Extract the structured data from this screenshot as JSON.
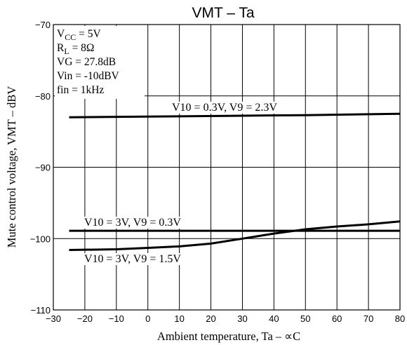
{
  "chart_data": {
    "type": "line",
    "title": "VMT – Ta",
    "xlabel": "Ambient temperature, Ta – ∝C",
    "ylabel": "Mute control voltage, VMT – dBV",
    "xlim": [
      -30,
      80
    ],
    "ylim": [
      -110,
      -70
    ],
    "x_ticks": [
      -30,
      -20,
      -10,
      0,
      10,
      20,
      30,
      40,
      50,
      60,
      70,
      80
    ],
    "y_ticks": [
      -70,
      -80,
      -90,
      -100,
      -110
    ],
    "grid": true,
    "conditions": [
      {
        "main": "V",
        "sub": "CC",
        "rest": " = 5V"
      },
      {
        "main": "R",
        "sub": "L",
        "rest": " = 8Ω"
      },
      {
        "main": "VG = 27.8dB",
        "sub": "",
        "rest": ""
      },
      {
        "main": "Vin = -10dBV",
        "sub": "",
        "rest": ""
      },
      {
        "main": "fin = 1kHz",
        "sub": "",
        "rest": ""
      }
    ],
    "series": [
      {
        "label": "V10 = 0.3V, V9 = 2.3V",
        "x": [
          -25,
          0,
          25,
          50,
          80
        ],
        "y": [
          -83.0,
          -82.9,
          -82.8,
          -82.7,
          -82.5
        ]
      },
      {
        "label": "V10 = 3V, V9 = 0.3V",
        "x": [
          -25,
          0,
          25,
          50,
          80
        ],
        "y": [
          -98.9,
          -98.9,
          -98.9,
          -98.9,
          -98.9
        ]
      },
      {
        "label": "V10 = 3V, V9 = 1.5V",
        "x": [
          -25,
          -10,
          0,
          10,
          20,
          30,
          40,
          50,
          60,
          70,
          80
        ],
        "y": [
          -101.6,
          -101.5,
          -101.3,
          -101.1,
          -100.7,
          -100.0,
          -99.3,
          -98.7,
          -98.3,
          -98.0,
          -97.6
        ]
      }
    ]
  }
}
